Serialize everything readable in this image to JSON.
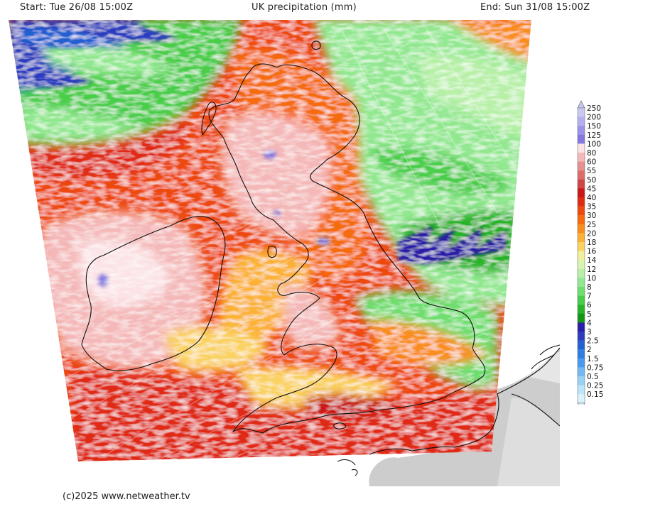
{
  "header": {
    "start": "Start: Tue 26/08 15:00Z",
    "title": "UK precipitation (mm)",
    "end": "End: Sun 31/08 15:00Z"
  },
  "footer": {
    "credit": "(c)2025  www.netweather.tv"
  },
  "legend": {
    "entries": [
      {
        "label": "250",
        "color": "#c8c8f4"
      },
      {
        "label": "200",
        "color": "#b4b0f0"
      },
      {
        "label": "150",
        "color": "#9c94ea"
      },
      {
        "label": "125",
        "color": "#8478e0"
      },
      {
        "label": "100",
        "color": "#fbe3e6"
      },
      {
        "label": "80",
        "color": "#f4b8b8"
      },
      {
        "label": "60",
        "color": "#e88f8f"
      },
      {
        "label": "55",
        "color": "#dc6c6c"
      },
      {
        "label": "50",
        "color": "#cf4545"
      },
      {
        "label": "45",
        "color": "#c81818"
      },
      {
        "label": "40",
        "color": "#e02a12"
      },
      {
        "label": "35",
        "color": "#ee4a10"
      },
      {
        "label": "30",
        "color": "#f56c10"
      },
      {
        "label": "25",
        "color": "#f98e1c"
      },
      {
        "label": "20",
        "color": "#fbb234"
      },
      {
        "label": "18",
        "color": "#fad260"
      },
      {
        "label": "16",
        "color": "#f4ef9a"
      },
      {
        "label": "14",
        "color": "#d9f5b0"
      },
      {
        "label": "12",
        "color": "#b8f0a8"
      },
      {
        "label": "10",
        "color": "#92e890"
      },
      {
        "label": "8",
        "color": "#6ede6e"
      },
      {
        "label": "7",
        "color": "#48ce48"
      },
      {
        "label": "6",
        "color": "#28b428"
      },
      {
        "label": "5",
        "color": "#149614"
      },
      {
        "label": "4",
        "color": "#2a1ea8"
      },
      {
        "label": "3",
        "color": "#2c3cc0"
      },
      {
        "label": "2.5",
        "color": "#2460d2"
      },
      {
        "label": "2",
        "color": "#2f7ee0"
      },
      {
        "label": "1.5",
        "color": "#4a9aec"
      },
      {
        "label": "0.75",
        "color": "#72b8f2"
      },
      {
        "label": "0.5",
        "color": "#98d0f6"
      },
      {
        "label": "0.25",
        "color": "#bce4fa"
      },
      {
        "label": "0.15",
        "color": "#daf2fc"
      }
    ]
  },
  "map": {
    "land_shading_color": "#c8c8c8",
    "coastline_color": "#111111"
  }
}
